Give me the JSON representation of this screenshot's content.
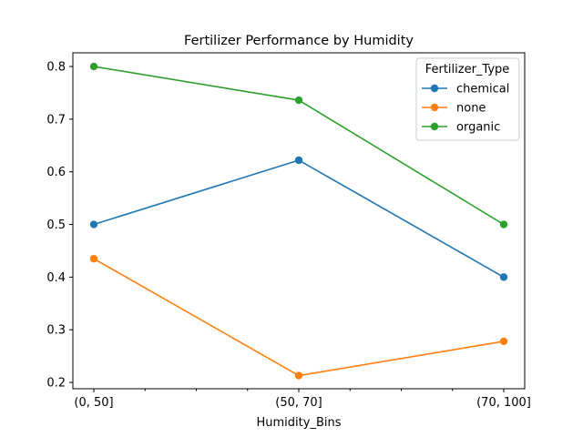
{
  "chart_data": {
    "type": "line",
    "title": "Fertilizer Performance by Humidity",
    "xlabel": "Humidity_Bins",
    "ylabel": "",
    "categories": [
      "(0, 50]",
      "(50, 70]",
      "(70, 100]"
    ],
    "ylim": [
      0.188,
      0.826
    ],
    "yticks": [
      0.2,
      0.3,
      0.4,
      0.5,
      0.6,
      0.7,
      0.8
    ],
    "ytick_labels": [
      "0.2",
      "0.3",
      "0.4",
      "0.5",
      "0.6",
      "0.7",
      "0.8"
    ],
    "grid": false,
    "legend": {
      "title": "Fertilizer_Type",
      "placement": "top-right"
    },
    "series": [
      {
        "name": "chemical",
        "color": "#1f77b4",
        "values": [
          0.5,
          0.622,
          0.4
        ]
      },
      {
        "name": "none",
        "color": "#ff7f0e",
        "values": [
          0.435,
          0.213,
          0.278
        ]
      },
      {
        "name": "organic",
        "color": "#2ca02c",
        "values": [
          0.8,
          0.736,
          0.5
        ]
      }
    ]
  }
}
